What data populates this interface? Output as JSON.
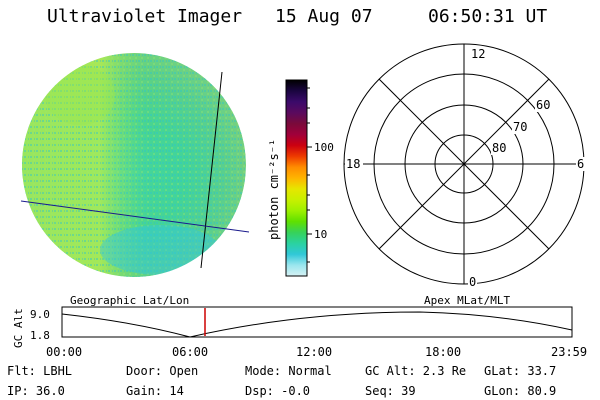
{
  "header": {
    "instrument": "Ultraviolet Imager",
    "date": "15 Aug 07",
    "time": "06:50:31 UT"
  },
  "colorbar": {
    "unit_label": "photon cm⁻²s⁻¹",
    "ticks": [
      "100",
      "10"
    ],
    "colors": [
      "#000000",
      "#1a0540",
      "#3b0a6a",
      "#5a0a5e",
      "#7a0a3a",
      "#a0003a",
      "#cc0010",
      "#ee3a00",
      "#ff8c00",
      "#ffb400",
      "#e6e600",
      "#c8f000",
      "#9ef000",
      "#5fe000",
      "#36d25a",
      "#2ad2a0",
      "#30c8d8",
      "#9ae6ee",
      "#d6f1f4"
    ]
  },
  "polar": {
    "mlt_labels": [
      "12",
      "18",
      "6",
      "0"
    ],
    "lat_labels": [
      "60",
      "70",
      "80"
    ]
  },
  "timeline": {
    "left_label": "Geographic Lat/Lon",
    "right_label": "Apex MLat/MLT",
    "axis_title": "GC Alt",
    "y_ticks": [
      "9.0",
      "1.8"
    ],
    "time_ticks": [
      "00:00",
      "06:00",
      "12:00",
      "18:00",
      "23:59"
    ],
    "current_marker_color": "#cc0000"
  },
  "info": {
    "flt": "Flt: LBHL",
    "ip": "IP: 36.0",
    "door": "Door: Open",
    "gain": "Gain: 14",
    "mode": "Mode: Normal",
    "dsp": "Dsp:   -0.0",
    "gcalt": "GC Alt: 2.3 Re",
    "seq": "Seq: 39",
    "glat": "GLat:  33.7",
    "glon": "GLon:  80.9"
  }
}
